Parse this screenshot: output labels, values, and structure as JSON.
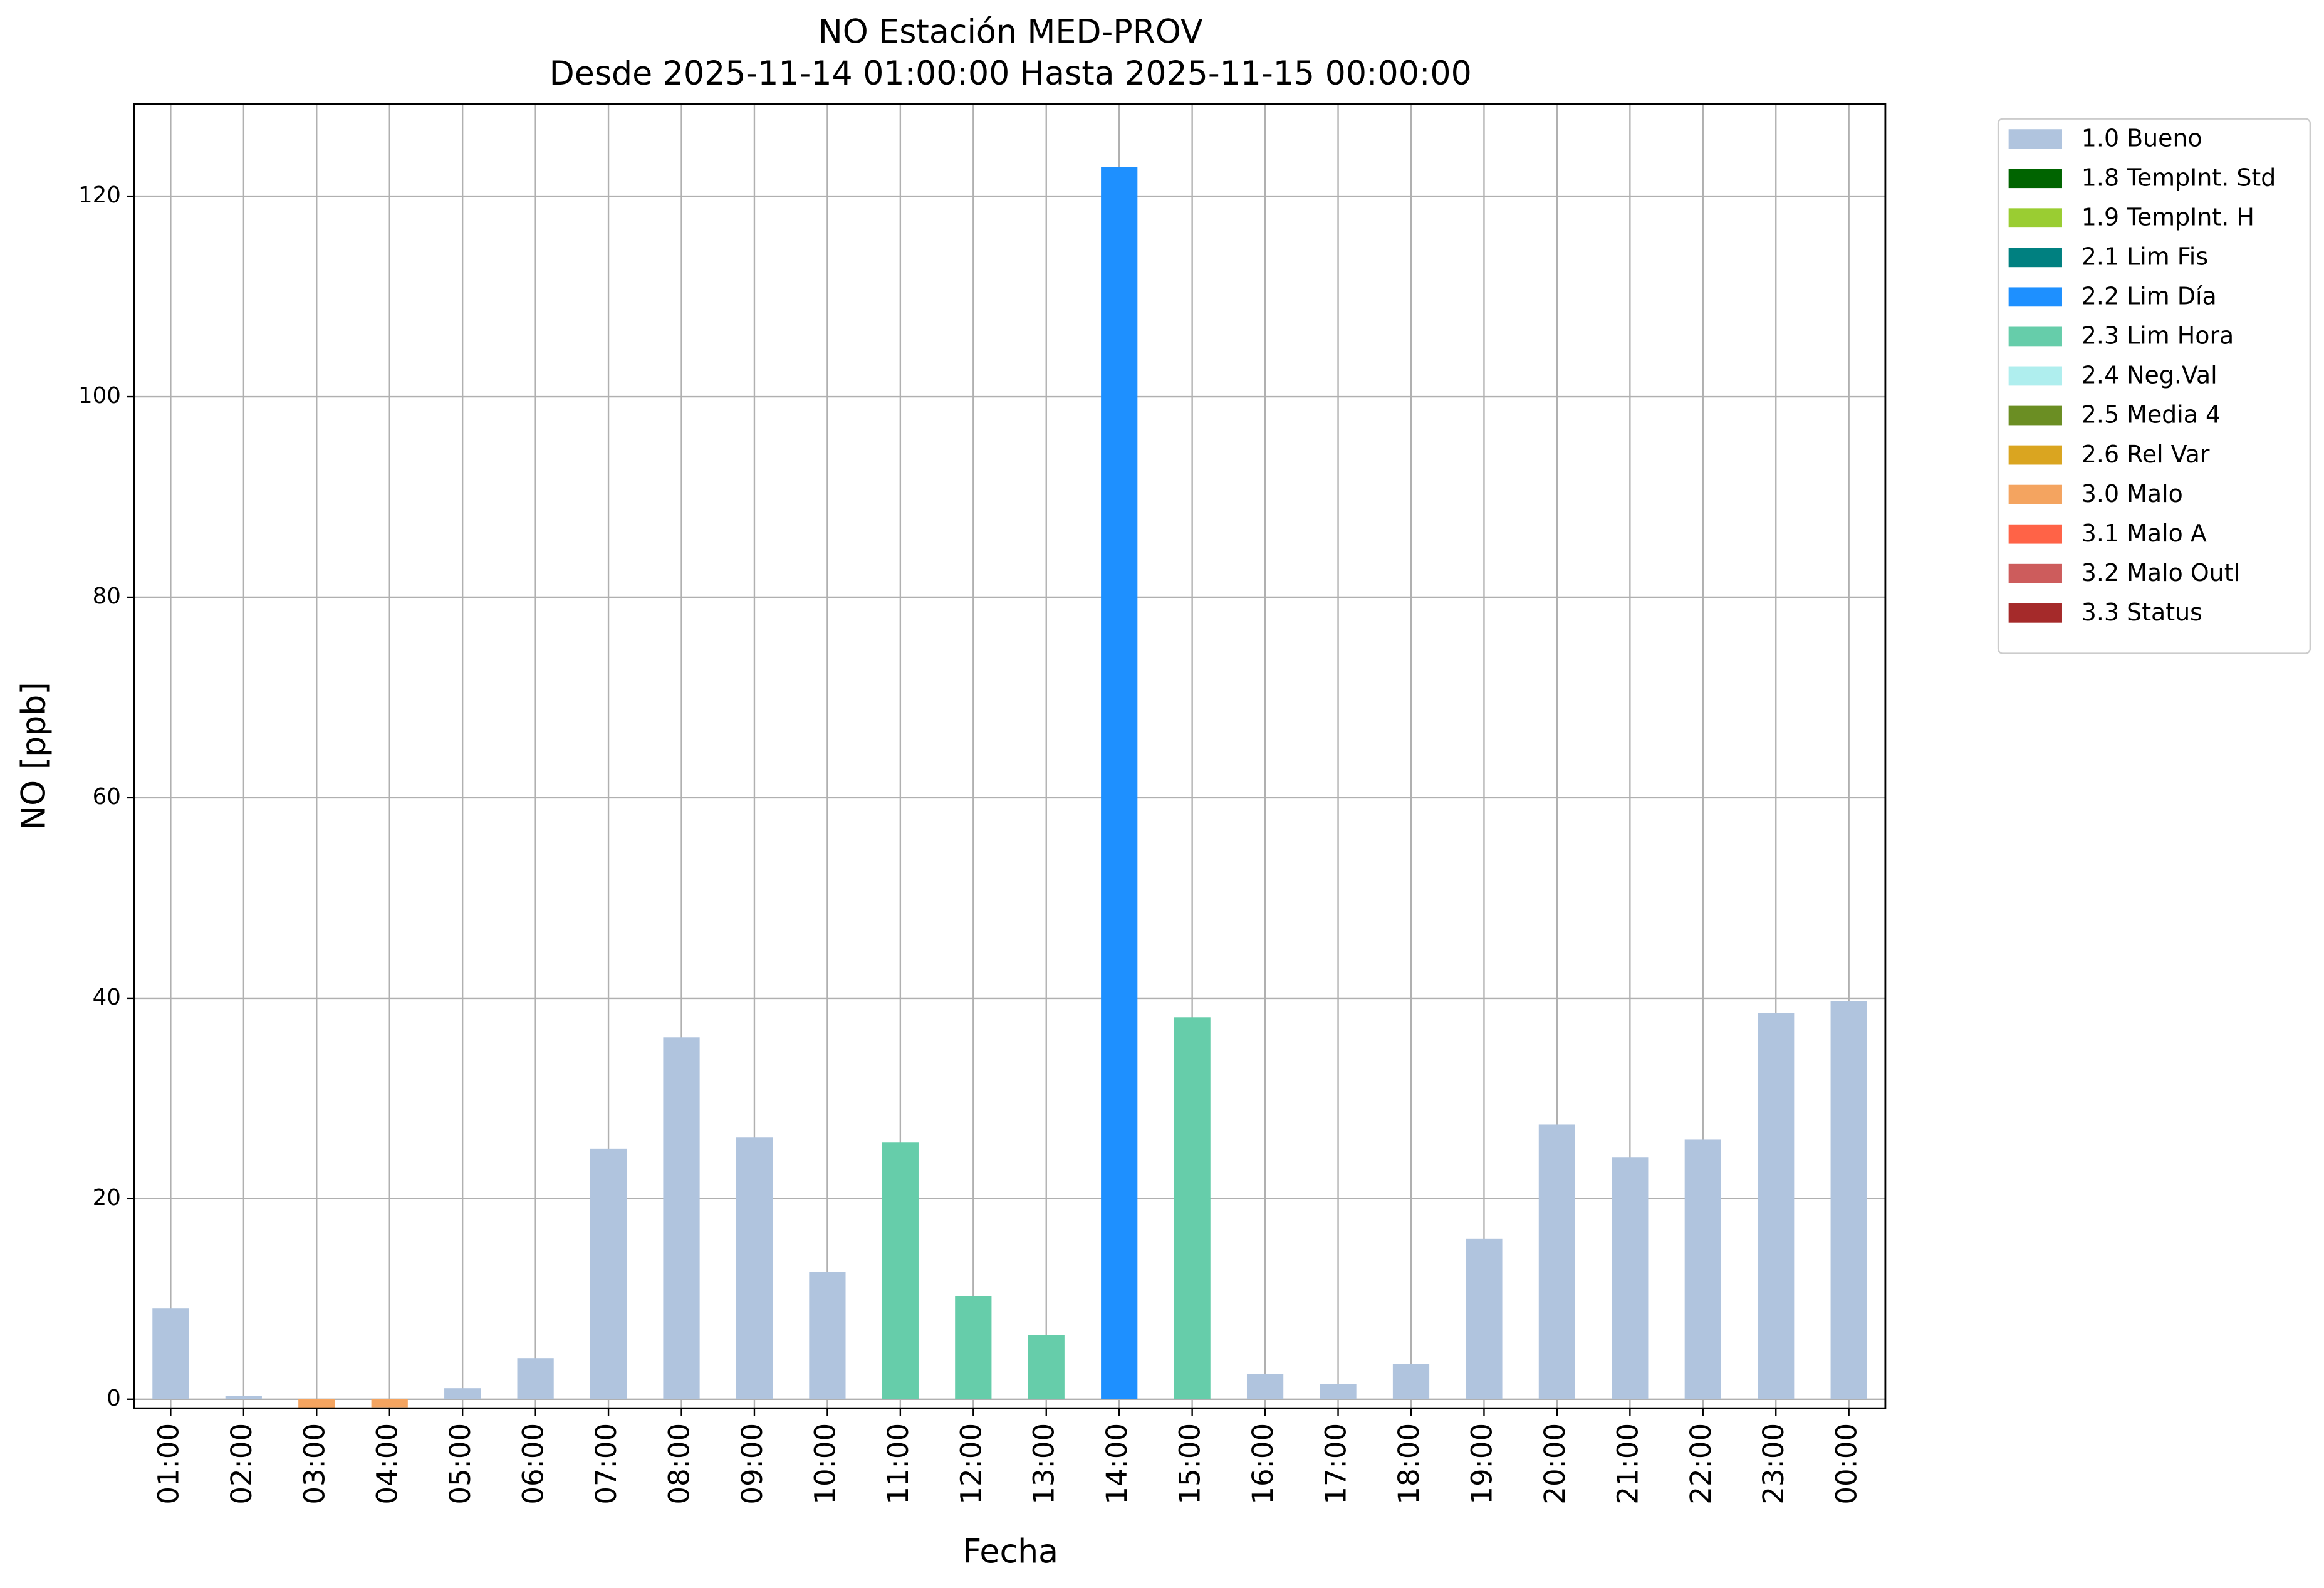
{
  "chart_data": {
    "type": "bar",
    "title": "NO Estación MED-PROV",
    "subtitle": "Desde 2025-11-14 01:00:00 Hasta 2025-11-15 00:00:00",
    "xlabel": "Fecha",
    "ylabel": "NO [ppb]",
    "categories": [
      "01:00",
      "02:00",
      "03:00",
      "04:00",
      "05:00",
      "06:00",
      "07:00",
      "08:00",
      "09:00",
      "10:00",
      "11:00",
      "12:00",
      "13:00",
      "14:00",
      "15:00",
      "16:00",
      "17:00",
      "18:00",
      "19:00",
      "20:00",
      "21:00",
      "22:00",
      "23:00",
      "00:00"
    ],
    "series": [
      {
        "name": "1.0 Bueno",
        "color": "#b0c4de",
        "values": [
          9.1,
          0.3,
          null,
          null,
          1.1,
          4.1,
          25.0,
          36.1,
          26.1,
          12.7,
          null,
          null,
          null,
          null,
          null,
          2.5,
          1.5,
          3.5,
          16.0,
          27.4,
          24.1,
          25.9,
          38.5,
          39.7
        ]
      },
      {
        "name": "1.8 TempInt. Std",
        "color": "#006400",
        "values": [
          null,
          null,
          null,
          null,
          null,
          null,
          null,
          null,
          null,
          null,
          null,
          null,
          null,
          null,
          null,
          null,
          null,
          null,
          null,
          null,
          null,
          null,
          null,
          null
        ]
      },
      {
        "name": "1.9 TempInt. H",
        "color": "#9acd32",
        "values": [
          null,
          null,
          null,
          null,
          null,
          null,
          null,
          null,
          null,
          null,
          null,
          null,
          null,
          null,
          null,
          null,
          null,
          null,
          null,
          null,
          null,
          null,
          null,
          null
        ]
      },
      {
        "name": "2.1 Lim Fis",
        "color": "#008080",
        "values": [
          null,
          null,
          null,
          null,
          null,
          null,
          null,
          null,
          null,
          null,
          null,
          null,
          null,
          null,
          null,
          null,
          null,
          null,
          null,
          null,
          null,
          null,
          null,
          null
        ]
      },
      {
        "name": "2.2 Lim Día",
        "color": "#1e90ff",
        "values": [
          null,
          null,
          null,
          null,
          null,
          null,
          null,
          null,
          null,
          null,
          null,
          null,
          null,
          122.9,
          null,
          null,
          null,
          null,
          null,
          null,
          null,
          null,
          null,
          null
        ]
      },
      {
        "name": "2.3 Lim Hora",
        "color": "#66cdaa",
        "values": [
          null,
          null,
          null,
          null,
          null,
          null,
          null,
          null,
          null,
          null,
          25.6,
          10.3,
          6.4,
          null,
          38.1,
          null,
          null,
          null,
          null,
          null,
          null,
          null,
          null,
          null
        ]
      },
      {
        "name": "2.4 Neg.Val",
        "color": "#afeeee",
        "values": [
          null,
          null,
          null,
          null,
          null,
          null,
          null,
          null,
          null,
          null,
          null,
          null,
          null,
          null,
          null,
          null,
          null,
          null,
          null,
          null,
          null,
          null,
          null,
          null
        ]
      },
      {
        "name": "2.5 Media 4",
        "color": "#6b8e23",
        "values": [
          null,
          null,
          null,
          null,
          null,
          null,
          null,
          null,
          null,
          null,
          null,
          null,
          null,
          null,
          null,
          null,
          null,
          null,
          null,
          null,
          null,
          null,
          null,
          null
        ]
      },
      {
        "name": "2.6 Rel Var",
        "color": "#daa520",
        "values": [
          null,
          null,
          null,
          null,
          null,
          null,
          null,
          null,
          null,
          null,
          null,
          null,
          null,
          null,
          null,
          null,
          null,
          null,
          null,
          null,
          null,
          null,
          null,
          null
        ]
      },
      {
        "name": "3.0 Malo",
        "color": "#f4a460",
        "values": [
          null,
          null,
          -0.9,
          -0.8,
          null,
          null,
          null,
          null,
          null,
          null,
          null,
          null,
          null,
          null,
          null,
          null,
          null,
          null,
          null,
          null,
          null,
          null,
          null,
          null
        ]
      },
      {
        "name": "3.1 Malo A",
        "color": "#ff6347",
        "values": [
          null,
          null,
          null,
          null,
          null,
          null,
          null,
          null,
          null,
          null,
          null,
          null,
          null,
          null,
          null,
          null,
          null,
          null,
          null,
          null,
          null,
          null,
          null,
          null
        ]
      },
      {
        "name": "3.2 Malo Outl",
        "color": "#cd5c5c",
        "values": [
          null,
          null,
          null,
          null,
          null,
          null,
          null,
          null,
          null,
          null,
          null,
          null,
          null,
          null,
          null,
          null,
          null,
          null,
          null,
          null,
          null,
          null,
          null,
          null
        ]
      },
      {
        "name": "3.3 Status",
        "color": "#a52a2a",
        "values": [
          null,
          null,
          null,
          null,
          null,
          null,
          null,
          null,
          null,
          null,
          null,
          null,
          null,
          null,
          null,
          null,
          null,
          null,
          null,
          null,
          null,
          null,
          null,
          null
        ]
      }
    ],
    "ylim": [
      -0.9,
      129.2
    ],
    "yticks": [
      0,
      20,
      40,
      60,
      80,
      100,
      120
    ],
    "grid": true,
    "legend": "outside right"
  }
}
